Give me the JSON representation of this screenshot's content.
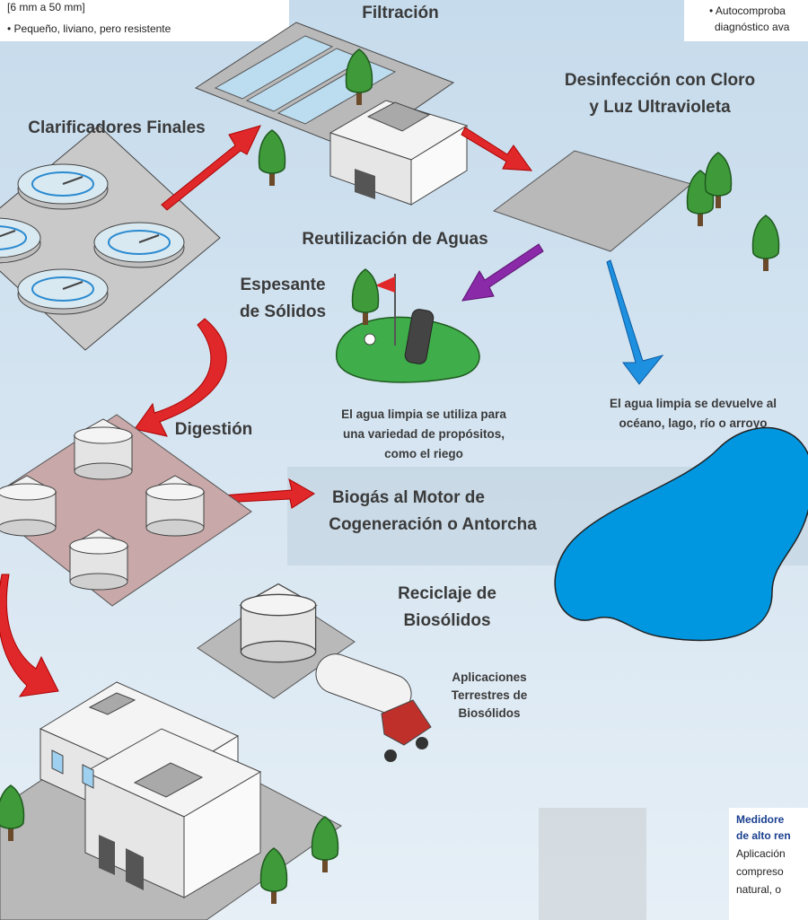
{
  "top_left_note": {
    "lines": [
      "[6 mm a 50 mm]",
      "• Pequeño, liviano, pero resistente"
    ]
  },
  "top_right_note": {
    "lines": [
      "• Autocomproba",
      "diagnóstico ava"
    ]
  },
  "filtration": {
    "label": "Filtración"
  },
  "disinfection": {
    "lines": [
      "Desinfección con Cloro",
      "y Luz Ultravioleta"
    ]
  },
  "final_clarifiers": {
    "label": "Clarificadores Finales"
  },
  "water_reuse": {
    "label": "Reutilización de Aguas",
    "caption": [
      "El agua limpia se utiliza para",
      "una variedad de propósitos,",
      "como el riego"
    ]
  },
  "thickener": {
    "lines": [
      "Espesante",
      "de Sólidos"
    ]
  },
  "water_return": {
    "caption": [
      "El agua limpia se devuelve al",
      "océano, lago, río o arroyo"
    ]
  },
  "digestion": {
    "label": "Digestión"
  },
  "biogas": {
    "lines": [
      "Biogás al Motor de",
      "Cogeneración o Antorcha"
    ]
  },
  "biosolids_recycling": {
    "lines": [
      "Reciclaje de",
      "Biosólidos"
    ]
  },
  "land_application": {
    "lines": [
      "Aplicaciones",
      "Terrestres de",
      "Biosólidos"
    ]
  },
  "bottom_right_note": {
    "title": [
      "Medidore",
      "de alto ren"
    ],
    "lines": [
      "Aplicación",
      "compreso",
      "natural, o"
    ]
  }
}
